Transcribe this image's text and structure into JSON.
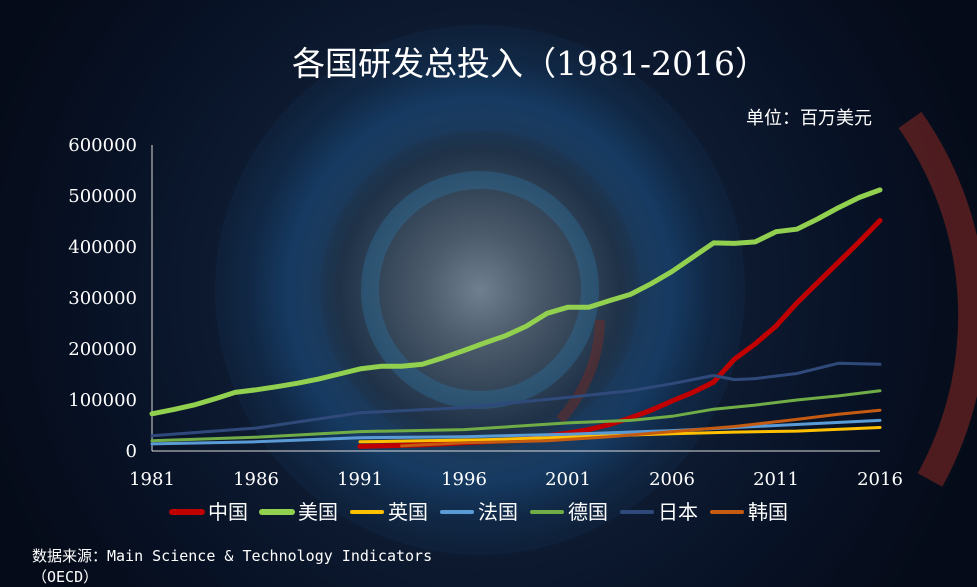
{
  "chart_data": {
    "type": "line",
    "title": "各国研发总投入（1981-2016）",
    "unit": "单位：百万美元",
    "source_line1": "数据来源：Main Science & Technology Indicators",
    "source_line2": "（OECD）",
    "x_ticks": [
      "1981",
      "1986",
      "1991",
      "1996",
      "2001",
      "2006",
      "2011",
      "2016"
    ],
    "y_ticks": [
      "0",
      "100000",
      "200000",
      "300000",
      "400000",
      "500000",
      "600000"
    ],
    "xlim": [
      1981,
      2016
    ],
    "ylim": [
      0,
      600000
    ],
    "grid": false,
    "legend_position": "bottom",
    "series": [
      {
        "name": "中国",
        "color": "#c00000",
        "width": 5,
        "x": [
          1991,
          1992,
          1993,
          1994,
          1995,
          1996,
          1997,
          1998,
          1999,
          2000,
          2001,
          2002,
          2003,
          2004,
          2005,
          2006,
          2007,
          2008,
          2009,
          2010,
          2011,
          2012,
          2013,
          2014,
          2015,
          2016
        ],
        "y": [
          9000,
          10000,
          11000,
          12000,
          14000,
          16000,
          18000,
          20000,
          24000,
          30000,
          35000,
          42000,
          52000,
          65000,
          80000,
          98000,
          115000,
          135000,
          180000,
          210000,
          245000,
          290000,
          330000,
          370000,
          410000,
          452000
        ]
      },
      {
        "name": "美国",
        "color": "#92d050",
        "width": 5,
        "x": [
          1981,
          1982,
          1983,
          1984,
          1985,
          1986,
          1987,
          1988,
          1989,
          1990,
          1991,
          1992,
          1993,
          1994,
          1995,
          1996,
          1997,
          1998,
          1999,
          2000,
          2001,
          2002,
          2003,
          2004,
          2005,
          2006,
          2007,
          2008,
          2009,
          2010,
          2011,
          2012,
          2013,
          2014,
          2015,
          2016
        ],
        "y": [
          73000,
          81000,
          90000,
          102000,
          115000,
          120000,
          126000,
          133000,
          141000,
          151000,
          161000,
          166000,
          166000,
          170000,
          183000,
          197000,
          212000,
          226000,
          245000,
          270000,
          282000,
          282000,
          295000,
          307000,
          328000,
          352000,
          380000,
          408000,
          407000,
          410000,
          430000,
          435000,
          455000,
          477000,
          497000,
          512000
        ]
      },
      {
        "name": "英国",
        "color": "#ffc000",
        "width": 3,
        "x": [
          1991,
          1994,
          1997,
          2000,
          2003,
          2006,
          2009,
          2012,
          2016
        ],
        "y": [
          18000,
          20000,
          22000,
          26000,
          30000,
          34000,
          37000,
          39000,
          46000
        ]
      },
      {
        "name": "法国",
        "color": "#5b9bd5",
        "width": 3,
        "x": [
          1981,
          1986,
          1991,
          1996,
          2001,
          2006,
          2011,
          2016
        ],
        "y": [
          14000,
          18000,
          26000,
          28000,
          33000,
          40000,
          50000,
          60000
        ]
      },
      {
        "name": "德国",
        "color": "#70ad47",
        "width": 3,
        "x": [
          1981,
          1986,
          1991,
          1996,
          2001,
          2004,
          2006,
          2008,
          2010,
          2012,
          2014,
          2016
        ],
        "y": [
          20000,
          27000,
          38000,
          42000,
          55000,
          60000,
          68000,
          82000,
          90000,
          100000,
          108000,
          118000
        ]
      },
      {
        "name": "日本",
        "color": "#2f4a7a",
        "width": 3,
        "x": [
          1981,
          1986,
          1991,
          1996,
          2001,
          2004,
          2006,
          2008,
          2009,
          2010,
          2012,
          2014,
          2016
        ],
        "y": [
          30000,
          45000,
          75000,
          85000,
          105000,
          118000,
          132000,
          148000,
          140000,
          142000,
          152000,
          172000,
          170000
        ]
      },
      {
        "name": "韩国",
        "color": "#c55a11",
        "width": 3,
        "x": [
          1993,
          1996,
          2000,
          2003,
          2006,
          2009,
          2012,
          2014,
          2016
        ],
        "y": [
          10000,
          16000,
          20000,
          28000,
          38000,
          48000,
          62000,
          72000,
          80000
        ]
      }
    ]
  }
}
